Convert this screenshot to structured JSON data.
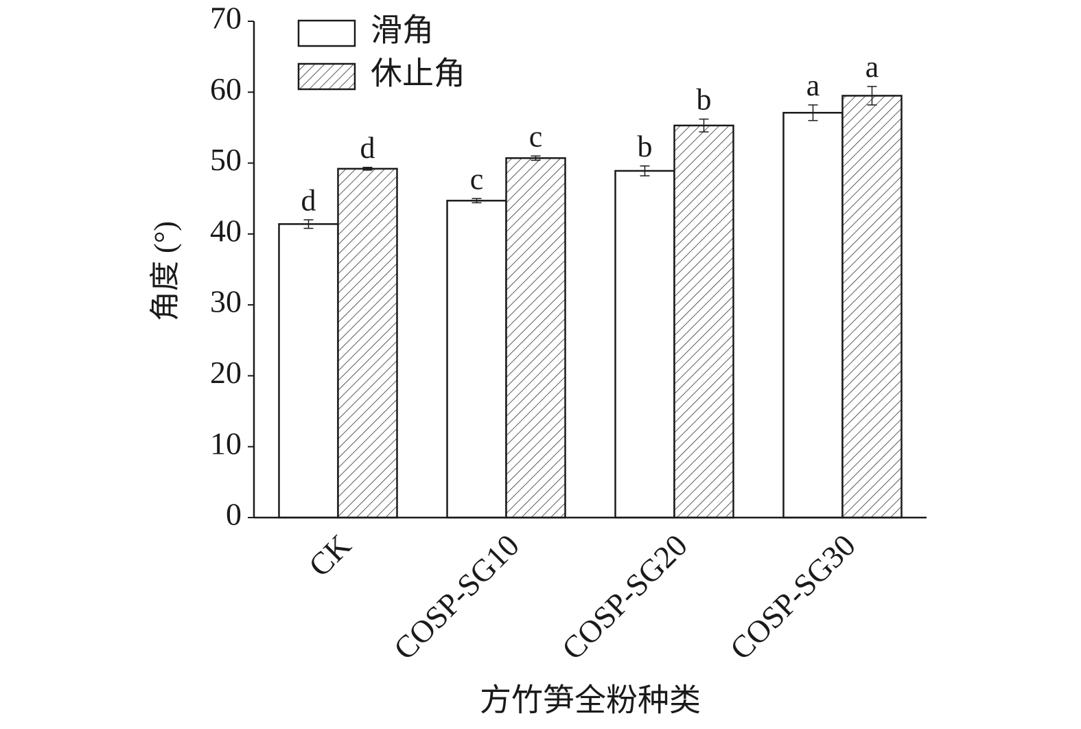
{
  "chart_data": {
    "type": "bar",
    "x_label": "方竹笋全粉种类",
    "y_label": "角度 (°)",
    "categories": [
      "CK",
      "COSP-SG10",
      "COSP-SG20",
      "COSP-SG30"
    ],
    "series": [
      {
        "name": "滑角",
        "color": "#ffffff",
        "pattern": "none",
        "values": [
          41.4,
          44.7,
          48.9,
          57.1
        ],
        "errors": [
          0.6,
          0.3,
          0.7,
          1.1
        ],
        "letters": [
          "d",
          "c",
          "b",
          "a"
        ]
      },
      {
        "name": "休止角",
        "color": "#ffffff",
        "pattern": "hatch",
        "values": [
          49.2,
          50.7,
          55.3,
          59.5
        ],
        "errors": [
          0.2,
          0.3,
          0.9,
          1.3
        ],
        "letters": [
          "d",
          "c",
          "b",
          "a"
        ]
      }
    ],
    "ylim": [
      0,
      70
    ],
    "yticks": [
      0,
      10,
      20,
      30,
      40,
      50,
      60,
      70
    ],
    "grid": false,
    "legend": "upper left"
  }
}
